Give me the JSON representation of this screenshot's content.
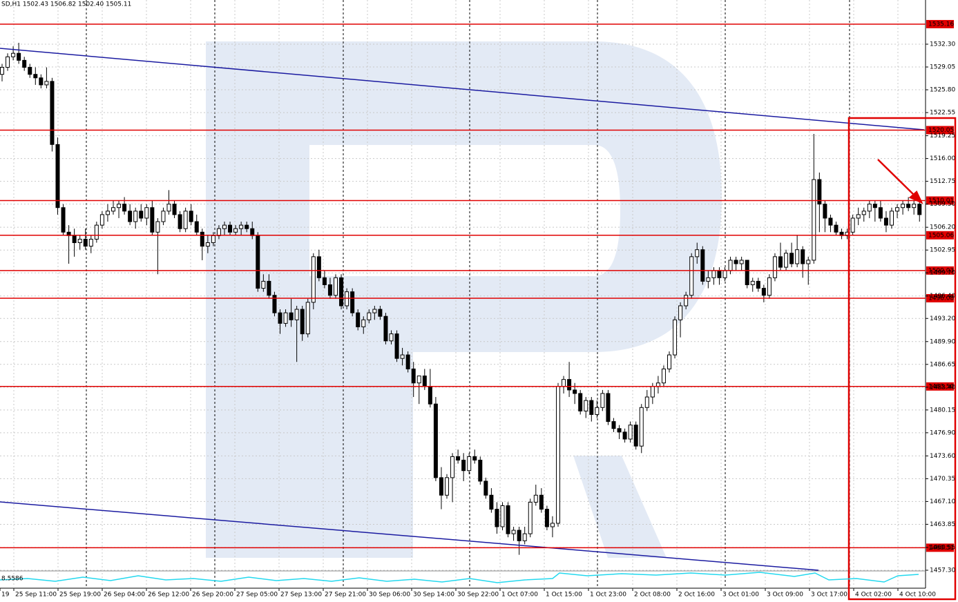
{
  "chart_data": {
    "type": "candlestick",
    "title": "SD,H1  1502.43 1506.82 1502.40 1505.11",
    "categories": [
      "19",
      "25 Sep 11:00",
      "25 Sep 19:00",
      "26 Sep 04:00",
      "26 Sep 12:00",
      "26 Sep 20:00",
      "27 Sep 05:00",
      "27 Sep 13:00",
      "27 Sep 21:00",
      "30 Sep 06:00",
      "30 Sep 14:00",
      "30 Sep 22:00",
      "1 Oct 07:00",
      "1 Oct 15:00",
      "1 Oct 23:00",
      "2 Oct 08:00",
      "2 Oct 16:00",
      "3 Oct 01:00",
      "3 Oct 09:00",
      "3 Oct 17:00",
      "4 Oct 02:00",
      "4 Oct 10:00"
    ],
    "candles": [
      [
        1528,
        1529.5,
        1527,
        1529
      ],
      [
        1529,
        1531,
        1528.5,
        1530.5
      ],
      [
        1530.5,
        1532,
        1530,
        1531
      ],
      [
        1531,
        1532.5,
        1529.5,
        1530
      ],
      [
        1530,
        1530.5,
        1528.5,
        1529
      ],
      [
        1529,
        1529.5,
        1527.5,
        1528
      ],
      [
        1528,
        1529,
        1526.5,
        1527.5
      ],
      [
        1527.5,
        1528,
        1526,
        1526.5
      ],
      [
        1526.5,
        1529,
        1526,
        1527
      ],
      [
        1527,
        1527.5,
        1517,
        1518
      ],
      [
        1518,
        1519,
        1508,
        1509
      ],
      [
        1509,
        1509.5,
        1505,
        1505.5
      ],
      [
        1505.5,
        1506.5,
        1501,
        1505
      ],
      [
        1505,
        1506,
        1502,
        1504
      ],
      [
        1504,
        1505,
        1503,
        1504.5
      ],
      [
        1504.5,
        1506,
        1503,
        1503.5
      ],
      [
        1503.5,
        1505,
        1502.5,
        1504.5
      ],
      [
        1504.5,
        1507,
        1504,
        1506.5
      ],
      [
        1506.5,
        1508.5,
        1506,
        1508
      ],
      [
        1508,
        1509.5,
        1507,
        1508.5
      ],
      [
        1508.5,
        1510,
        1508,
        1509
      ],
      [
        1509,
        1510,
        1507.5,
        1509.5
      ],
      [
        1509.5,
        1510.5,
        1508,
        1508.5
      ],
      [
        1508.5,
        1509.5,
        1506.5,
        1507
      ],
      [
        1507,
        1509,
        1506,
        1508.5
      ],
      [
        1508.5,
        1509.5,
        1507,
        1507.5
      ],
      [
        1507.5,
        1509.5,
        1506.5,
        1509
      ],
      [
        1509,
        1510,
        1505,
        1505.5
      ],
      [
        1505.5,
        1507.5,
        1499.5,
        1507
      ],
      [
        1507,
        1509,
        1506.5,
        1508.5
      ],
      [
        1508.5,
        1511.5,
        1508,
        1509.5
      ],
      [
        1509.5,
        1510,
        1507.5,
        1508
      ],
      [
        1508,
        1508.5,
        1505.5,
        1506
      ],
      [
        1506,
        1509,
        1505.5,
        1508.5
      ],
      [
        1508.5,
        1509.5,
        1506.5,
        1507
      ],
      [
        1507,
        1508,
        1505,
        1505.5
      ],
      [
        1505.5,
        1506,
        1501.5,
        1503.5
      ],
      [
        1503.5,
        1505,
        1502.5,
        1504
      ],
      [
        1504,
        1505.5,
        1503.5,
        1505
      ],
      [
        1505,
        1506.5,
        1504.5,
        1506
      ],
      [
        1506,
        1507,
        1505,
        1506.5
      ],
      [
        1506.5,
        1507,
        1505,
        1505.5
      ],
      [
        1505.5,
        1506.5,
        1505,
        1506
      ],
      [
        1506,
        1507,
        1505,
        1506.5
      ],
      [
        1506.5,
        1507,
        1505.5,
        1506
      ],
      [
        1506,
        1507,
        1504.5,
        1505
      ],
      [
        1505,
        1505.5,
        1497,
        1497.5
      ],
      [
        1497.5,
        1499.5,
        1497,
        1498.5
      ],
      [
        1498.5,
        1499.5,
        1496,
        1496.5
      ],
      [
        1496.5,
        1497,
        1493.5,
        1494
      ],
      [
        1494,
        1494.5,
        1491,
        1492.5
      ],
      [
        1492.5,
        1494.5,
        1492,
        1494
      ],
      [
        1494,
        1496,
        1492,
        1493
      ],
      [
        1493,
        1495,
        1487,
        1494.5
      ],
      [
        1494.5,
        1495,
        1490,
        1491
      ],
      [
        1491,
        1496,
        1490.5,
        1495.5
      ],
      [
        1495.5,
        1502.5,
        1494.5,
        1502
      ],
      [
        1502,
        1503,
        1498.5,
        1499
      ],
      [
        1499,
        1500,
        1497.5,
        1498
      ],
      [
        1498,
        1499,
        1496,
        1496.5
      ],
      [
        1496.5,
        1499.5,
        1496,
        1499
      ],
      [
        1499,
        1499.5,
        1494.5,
        1495
      ],
      [
        1495,
        1497.5,
        1494.5,
        1497
      ],
      [
        1497,
        1497.5,
        1493.5,
        1494
      ],
      [
        1494,
        1494.5,
        1491.5,
        1492
      ],
      [
        1492,
        1493.5,
        1491,
        1493
      ],
      [
        1493,
        1494.5,
        1492.5,
        1494
      ],
      [
        1494,
        1495,
        1493,
        1494.5
      ],
      [
        1494.5,
        1495,
        1493,
        1493.5
      ],
      [
        1493.5,
        1494,
        1489.5,
        1490
      ],
      [
        1490,
        1491.5,
        1489.5,
        1491
      ],
      [
        1491,
        1491.5,
        1487,
        1487.5
      ],
      [
        1487.5,
        1489,
        1486.5,
        1488
      ],
      [
        1488,
        1488.5,
        1485.5,
        1486
      ],
      [
        1486,
        1487,
        1482,
        1484
      ],
      [
        1484,
        1485,
        1481,
        1485
      ],
      [
        1485,
        1486,
        1483,
        1483.5
      ],
      [
        1483.5,
        1486,
        1480.5,
        1481
      ],
      [
        1481,
        1482,
        1470,
        1470.5
      ],
      [
        1470.5,
        1472,
        1466,
        1468
      ],
      [
        1468,
        1471,
        1467.5,
        1470.5
      ],
      [
        1470.5,
        1474,
        1467,
        1473.5
      ],
      [
        1473.5,
        1474.5,
        1472.5,
        1473
      ],
      [
        1473,
        1474,
        1470,
        1471.5
      ],
      [
        1471.5,
        1474,
        1471,
        1473.5
      ],
      [
        1473.5,
        1474.5,
        1472.5,
        1473
      ],
      [
        1473,
        1473.5,
        1469.5,
        1470
      ],
      [
        1470,
        1470.5,
        1467.5,
        1468
      ],
      [
        1468,
        1469,
        1465.5,
        1466
      ],
      [
        1466,
        1467,
        1462.5,
        1463.5
      ],
      [
        1463.5,
        1467,
        1463,
        1466.5
      ],
      [
        1466.5,
        1467,
        1462,
        1462.5
      ],
      [
        1462.5,
        1463.5,
        1461.5,
        1463
      ],
      [
        1463,
        1463.5,
        1459.5,
        1461.5
      ],
      [
        1461.5,
        1463.5,
        1461,
        1462.5
      ],
      [
        1462.5,
        1467.5,
        1462,
        1467
      ],
      [
        1467,
        1469.5,
        1466.5,
        1468
      ],
      [
        1468,
        1469,
        1465.5,
        1466
      ],
      [
        1466,
        1466.5,
        1463,
        1463.5
      ],
      [
        1463.5,
        1465,
        1462,
        1464
      ],
      [
        1464,
        1484,
        1463.5,
        1483.5
      ],
      [
        1483.5,
        1485,
        1482.5,
        1484.5
      ],
      [
        1484.5,
        1487,
        1482,
        1483
      ],
      [
        1483,
        1484,
        1481,
        1482.5
      ],
      [
        1482.5,
        1483,
        1479.5,
        1480
      ],
      [
        1480,
        1482,
        1479,
        1481.5
      ],
      [
        1481.5,
        1482,
        1478.5,
        1479.5
      ],
      [
        1479.5,
        1481.5,
        1479,
        1480.5
      ],
      [
        1480.5,
        1483,
        1480,
        1482.5
      ],
      [
        1482.5,
        1483,
        1478,
        1478.5
      ],
      [
        1478.5,
        1479,
        1477,
        1477.5
      ],
      [
        1477.5,
        1478,
        1476,
        1477
      ],
      [
        1477,
        1477.5,
        1475.5,
        1476
      ],
      [
        1476,
        1478.5,
        1475.5,
        1478
      ],
      [
        1478,
        1478.5,
        1474.5,
        1475
      ],
      [
        1475,
        1481,
        1474,
        1480.5
      ],
      [
        1480.5,
        1483,
        1480,
        1482
      ],
      [
        1482,
        1484,
        1481,
        1483.5
      ],
      [
        1483.5,
        1485,
        1482.5,
        1484
      ],
      [
        1484,
        1486.5,
        1483.5,
        1486
      ],
      [
        1486,
        1488.5,
        1485.5,
        1488
      ],
      [
        1488,
        1493.5,
        1487.5,
        1493
      ],
      [
        1493,
        1495.5,
        1490.5,
        1495
      ],
      [
        1495,
        1497,
        1494.5,
        1496.5
      ],
      [
        1496.5,
        1502.5,
        1496,
        1502
      ],
      [
        1502,
        1504,
        1501,
        1503
      ],
      [
        1503,
        1503.5,
        1498,
        1498.5
      ],
      [
        1498.5,
        1500,
        1497.5,
        1499
      ],
      [
        1499,
        1500.5,
        1498,
        1500
      ],
      [
        1500,
        1500.5,
        1498,
        1499
      ],
      [
        1499,
        1500.5,
        1498.5,
        1500
      ],
      [
        1500,
        1502,
        1499.5,
        1501.5
      ],
      [
        1501.5,
        1502,
        1500,
        1501
      ],
      [
        1501,
        1502,
        1500,
        1501.5
      ],
      [
        1501.5,
        1501.5,
        1497.5,
        1498
      ],
      [
        1498,
        1499,
        1497,
        1498.5
      ],
      [
        1498.5,
        1499,
        1497,
        1497.5
      ],
      [
        1497.5,
        1498,
        1495.5,
        1496.5
      ],
      [
        1496.5,
        1499.5,
        1496,
        1499
      ],
      [
        1499,
        1502.5,
        1498.5,
        1502
      ],
      [
        1502,
        1504,
        1500,
        1500.5
      ],
      [
        1500.5,
        1503,
        1500,
        1502.5
      ],
      [
        1502.5,
        1504,
        1500.5,
        1501
      ],
      [
        1501,
        1505,
        1500.5,
        1503
      ],
      [
        1503,
        1503.5,
        1499,
        1501
      ],
      [
        1501,
        1502,
        1498,
        1501.5
      ],
      [
        1501.5,
        1519.5,
        1501,
        1513
      ],
      [
        1513,
        1514,
        1505.5,
        1509.5
      ],
      [
        1509.5,
        1510,
        1505.5,
        1507.5
      ],
      [
        1507.5,
        1508,
        1505.5,
        1506.5
      ],
      [
        1506.5,
        1507,
        1505,
        1505.5
      ],
      [
        1505.5,
        1506,
        1504.5,
        1505
      ],
      [
        1505,
        1506,
        1504.5,
        1505.5
      ],
      [
        1505.5,
        1508,
        1505,
        1507.5
      ],
      [
        1507.5,
        1509,
        1506.5,
        1508
      ],
      [
        1508,
        1509,
        1507,
        1508.5
      ],
      [
        1508.5,
        1510,
        1507.5,
        1509.5
      ],
      [
        1509.5,
        1510,
        1507,
        1509
      ],
      [
        1509,
        1510,
        1507,
        1507.5
      ],
      [
        1507.5,
        1508.5,
        1505.5,
        1506.5
      ],
      [
        1506.5,
        1509,
        1506,
        1508.5
      ],
      [
        1508.5,
        1509.5,
        1507.5,
        1509
      ],
      [
        1509,
        1510,
        1508,
        1509.5
      ],
      [
        1509.5,
        1510.5,
        1508.5,
        1509
      ],
      [
        1509,
        1510,
        1508,
        1509.5
      ],
      [
        1509.5,
        1510,
        1507,
        1508
      ]
    ],
    "ylim": [
      1457.2,
      1538.6
    ],
    "yticks": [
      {
        "value": 1532.3,
        "label": "1532.30"
      },
      {
        "value": 1529.05,
        "label": "1529.05"
      },
      {
        "value": 1525.8,
        "label": "1525.80"
      },
      {
        "value": 1522.55,
        "label": "1522.55"
      },
      {
        "value": 1519.25,
        "label": "1519.25"
      },
      {
        "value": 1516,
        "label": "1516.00"
      },
      {
        "value": 1512.75,
        "label": "1512.75"
      },
      {
        "value": 1509.5,
        "label": "1509.50"
      },
      {
        "value": 1506.2,
        "label": "1506.20"
      },
      {
        "value": 1502.95,
        "label": "1502.95"
      },
      {
        "value": 1499.7,
        "label": "1499.70"
      },
      {
        "value": 1496.4,
        "label": "1496.40"
      },
      {
        "value": 1493.2,
        "label": "1493.20"
      },
      {
        "value": 1489.9,
        "label": "1489.90"
      },
      {
        "value": 1486.65,
        "label": "1486.65"
      },
      {
        "value": 1483.4,
        "label": "1483.40"
      },
      {
        "value": 1480.15,
        "label": "1480.15"
      },
      {
        "value": 1476.9,
        "label": "1476.90"
      },
      {
        "value": 1473.6,
        "label": "1473.60"
      },
      {
        "value": 1470.35,
        "label": "1470.35"
      },
      {
        "value": 1467.1,
        "label": "1467.10"
      },
      {
        "value": 1463.85,
        "label": "1463.85"
      },
      {
        "value": 1460.55,
        "label": "1460.55"
      },
      {
        "value": 1457.3,
        "label": "1457.30"
      }
    ],
    "levels": [
      {
        "value": 1535.16,
        "label": "1535.16"
      },
      {
        "value": 1520.05,
        "label": "1520.05"
      },
      {
        "value": 1510.01,
        "label": "1510.01"
      },
      {
        "value": 1505.06,
        "label": "1505.06"
      },
      {
        "value": 1500.03,
        "label": "1500.03"
      },
      {
        "value": 1496.08,
        "label": "1496.08"
      },
      {
        "value": 1483.5,
        "label": "1483.50"
      },
      {
        "value": 1460.51,
        "label": "1460.51"
      }
    ],
    "level_color": "#e00000",
    "indicator_label": "8.5586",
    "grid": true
  }
}
